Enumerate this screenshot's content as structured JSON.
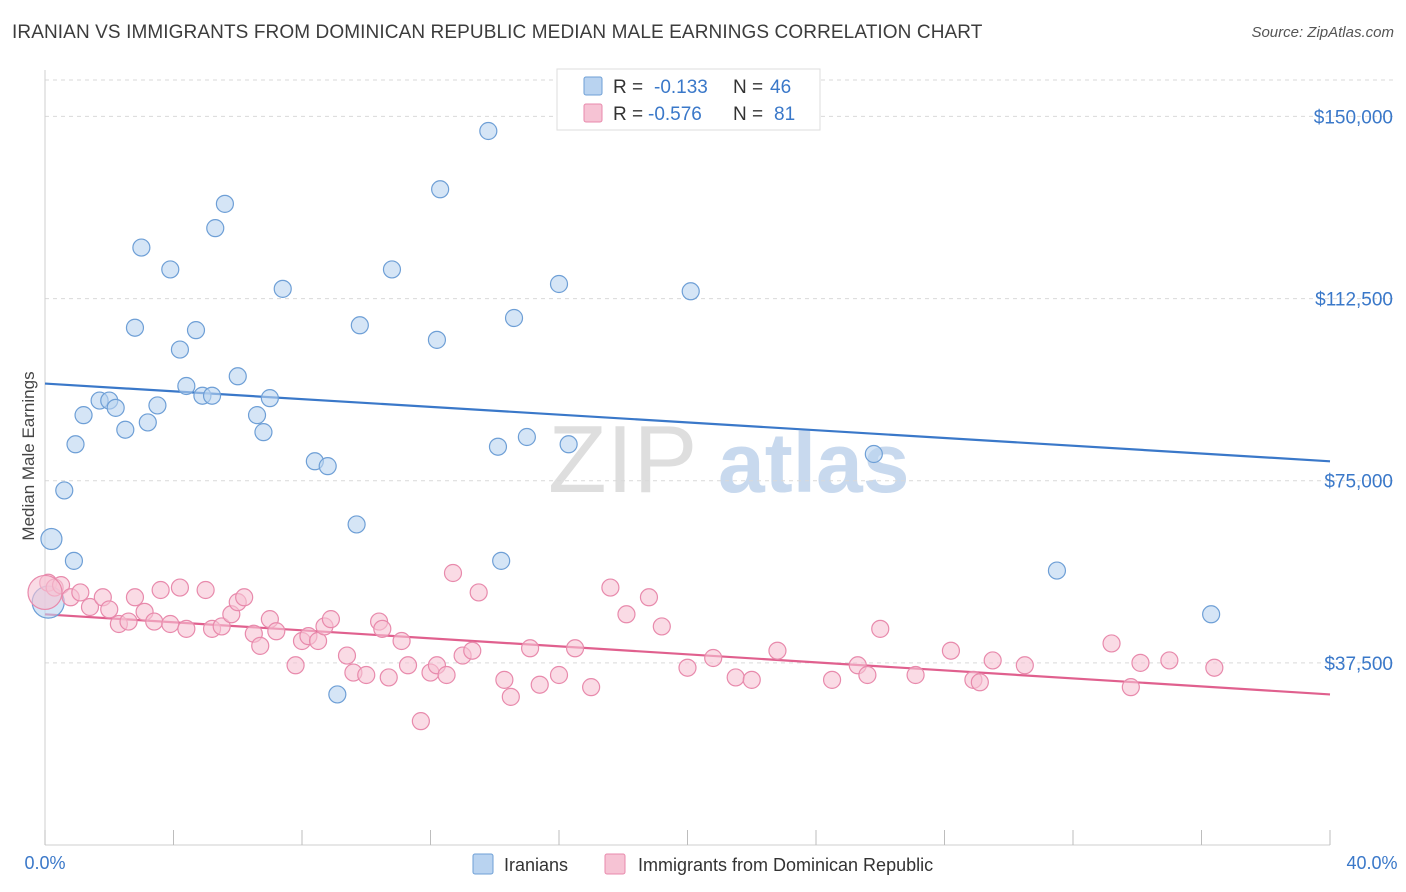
{
  "title": "IRANIAN VS IMMIGRANTS FROM DOMINICAN REPUBLIC MEDIAN MALE EARNINGS CORRELATION CHART",
  "source": "Source: ZipAtlas.com",
  "watermark": {
    "zip": "ZIP",
    "atlas": "atlas"
  },
  "colors": {
    "blue": "#3a78c9",
    "blue_fill": "#b9d3f0",
    "blue_stroke": "#6e9fd6",
    "pink": "#e0608e",
    "pink_fill": "#f6c3d4",
    "pink_stroke": "#e88aac",
    "grid": "#d6d6d6",
    "axis_text_blue": "#3a78c9"
  },
  "legend_box": [
    {
      "r_label": "R =",
      "r_value": "-0.133",
      "n_label": "N =",
      "n_value": "46"
    },
    {
      "r_label": "R =",
      "r_value": "-0.576",
      "n_label": "N =",
      "n_value": "81"
    }
  ],
  "chart_data": {
    "type": "scatter",
    "title": "IRANIAN VS IMMIGRANTS FROM DOMINICAN REPUBLIC MEDIAN MALE EARNINGS CORRELATION CHART",
    "xlabel": "",
    "ylabel": "Median Male Earnings",
    "xlim": [
      0,
      40
    ],
    "ylim": [
      0,
      157500
    ],
    "x_tick_labels": [
      "0.0%",
      "40.0%"
    ],
    "y_ticks": [
      37500,
      75000,
      112500,
      150000
    ],
    "y_tick_labels": [
      "$37,500",
      "$75,000",
      "$112,500",
      "$150,000"
    ],
    "grid": true,
    "legend_position": "bottom-center",
    "series": [
      {
        "name": "Iranians",
        "color": "#3a78c9",
        "r": -0.133,
        "n": 46,
        "trend": {
          "x": [
            0,
            40
          ],
          "y": [
            95000,
            79000
          ]
        },
        "points": [
          [
            0.1,
            50000
          ],
          [
            0.2,
            63000
          ],
          [
            0.6,
            73000
          ],
          [
            0.9,
            58500
          ],
          [
            0.95,
            82500
          ],
          [
            1.2,
            88500
          ],
          [
            1.7,
            91500
          ],
          [
            2.0,
            91500
          ],
          [
            2.2,
            90000
          ],
          [
            2.5,
            85500
          ],
          [
            2.8,
            106500
          ],
          [
            3.0,
            123000
          ],
          [
            3.2,
            87000
          ],
          [
            3.5,
            90500
          ],
          [
            3.9,
            118500
          ],
          [
            4.2,
            102000
          ],
          [
            4.4,
            94500
          ],
          [
            4.7,
            106000
          ],
          [
            4.9,
            92500
          ],
          [
            5.2,
            92500
          ],
          [
            5.3,
            127000
          ],
          [
            5.6,
            132000
          ],
          [
            6.0,
            96500
          ],
          [
            6.6,
            88500
          ],
          [
            6.8,
            85000
          ],
          [
            7.0,
            92000
          ],
          [
            7.4,
            114500
          ],
          [
            8.4,
            79000
          ],
          [
            8.8,
            78000
          ],
          [
            9.1,
            31000
          ],
          [
            9.7,
            66000
          ],
          [
            9.8,
            107000
          ],
          [
            10.8,
            118500
          ],
          [
            12.2,
            104000
          ],
          [
            12.3,
            135000
          ],
          [
            13.8,
            147000
          ],
          [
            14.1,
            82000
          ],
          [
            14.2,
            58500
          ],
          [
            14.6,
            108500
          ],
          [
            15.0,
            84000
          ],
          [
            16.0,
            115500
          ],
          [
            16.3,
            82500
          ],
          [
            20.1,
            114000
          ],
          [
            25.8,
            80500
          ],
          [
            31.5,
            56500
          ],
          [
            36.3,
            47500
          ]
        ]
      },
      {
        "name": "Immigrants from Dominican Republic",
        "color": "#e0608e",
        "r": -0.576,
        "n": 81,
        "trend": {
          "x": [
            0,
            40
          ],
          "y": [
            47500,
            31000
          ]
        },
        "points": [
          [
            0.1,
            54000
          ],
          [
            0.3,
            53000
          ],
          [
            0.5,
            53500
          ],
          [
            0.8,
            51000
          ],
          [
            1.1,
            52000
          ],
          [
            1.4,
            49000
          ],
          [
            1.8,
            51000
          ],
          [
            2.0,
            48500
          ],
          [
            2.3,
            45500
          ],
          [
            2.6,
            46000
          ],
          [
            2.8,
            51000
          ],
          [
            3.1,
            48000
          ],
          [
            3.4,
            46000
          ],
          [
            3.6,
            52500
          ],
          [
            3.9,
            45500
          ],
          [
            4.2,
            53000
          ],
          [
            4.4,
            44500
          ],
          [
            5.0,
            52500
          ],
          [
            5.2,
            44500
          ],
          [
            5.5,
            45000
          ],
          [
            5.8,
            47500
          ],
          [
            6.0,
            50000
          ],
          [
            6.2,
            51000
          ],
          [
            6.5,
            43500
          ],
          [
            6.7,
            41000
          ],
          [
            7.0,
            46500
          ],
          [
            7.2,
            44000
          ],
          [
            7.8,
            37000
          ],
          [
            8.0,
            42000
          ],
          [
            8.2,
            43000
          ],
          [
            8.5,
            42000
          ],
          [
            8.7,
            45000
          ],
          [
            8.9,
            46500
          ],
          [
            9.4,
            39000
          ],
          [
            9.6,
            35500
          ],
          [
            10.0,
            35000
          ],
          [
            10.4,
            46000
          ],
          [
            10.5,
            44500
          ],
          [
            10.7,
            34500
          ],
          [
            11.1,
            42000
          ],
          [
            11.3,
            37000
          ],
          [
            11.7,
            25500
          ],
          [
            12.0,
            35500
          ],
          [
            12.2,
            37000
          ],
          [
            12.5,
            35000
          ],
          [
            12.7,
            56000
          ],
          [
            13.0,
            39000
          ],
          [
            13.3,
            40000
          ],
          [
            13.5,
            52000
          ],
          [
            14.3,
            34000
          ],
          [
            14.5,
            30500
          ],
          [
            15.1,
            40500
          ],
          [
            15.4,
            33000
          ],
          [
            16.0,
            35000
          ],
          [
            16.5,
            40500
          ],
          [
            17.0,
            32500
          ],
          [
            17.6,
            53000
          ],
          [
            18.1,
            47500
          ],
          [
            18.8,
            51000
          ],
          [
            19.2,
            45000
          ],
          [
            20.0,
            36500
          ],
          [
            20.8,
            38500
          ],
          [
            21.5,
            34500
          ],
          [
            22.0,
            34000
          ],
          [
            22.8,
            40000
          ],
          [
            24.5,
            34000
          ],
          [
            25.3,
            37000
          ],
          [
            25.6,
            35000
          ],
          [
            26.0,
            44500
          ],
          [
            27.1,
            35000
          ],
          [
            28.2,
            40000
          ],
          [
            28.9,
            34000
          ],
          [
            29.1,
            33500
          ],
          [
            29.5,
            38000
          ],
          [
            30.5,
            37000
          ],
          [
            33.2,
            41500
          ],
          [
            33.8,
            32500
          ],
          [
            34.1,
            37500
          ],
          [
            35.0,
            38000
          ],
          [
            36.4,
            36500
          ],
          [
            0.0,
            52000
          ]
        ]
      }
    ]
  }
}
